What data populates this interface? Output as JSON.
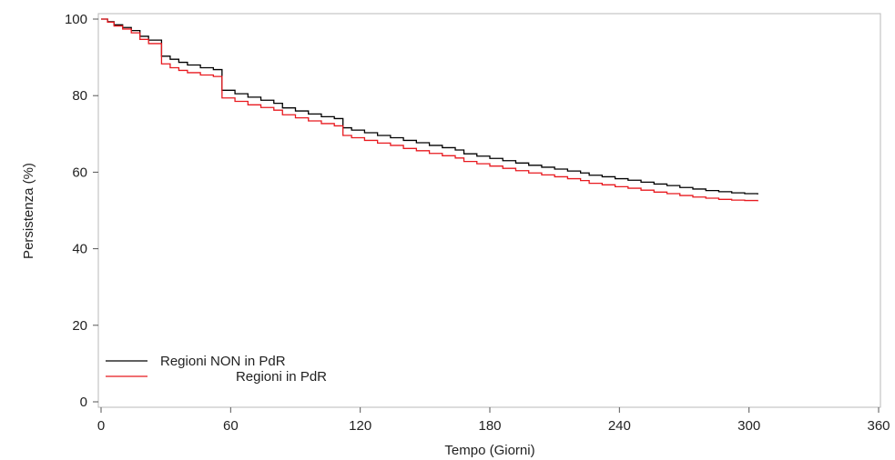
{
  "chart_data": {
    "type": "line",
    "title": "",
    "xlabel": "Tempo (Giorni)",
    "ylabel": "Persistenza (%)",
    "xlim": [
      0,
      360
    ],
    "ylim": [
      0,
      100
    ],
    "xticks": [
      0,
      60,
      120,
      180,
      240,
      300,
      360
    ],
    "yticks": [
      0,
      20,
      40,
      60,
      80,
      100
    ],
    "grid": false,
    "legend_position": "bottom-left",
    "step": true,
    "series": [
      {
        "name": "Regioni NON in PdR",
        "color": "#000000",
        "x": [
          0,
          3,
          6,
          10,
          14,
          18,
          22,
          28,
          32,
          36,
          40,
          46,
          52,
          56,
          62,
          68,
          74,
          80,
          84,
          90,
          96,
          102,
          108,
          112,
          116,
          122,
          128,
          134,
          140,
          146,
          152,
          158,
          164,
          168,
          174,
          180,
          186,
          192,
          198,
          204,
          210,
          216,
          222,
          226,
          232,
          238,
          244,
          250,
          256,
          262,
          268,
          274,
          280,
          286,
          292,
          298,
          304
        ],
        "y": [
          100,
          99.3,
          98.5,
          97.8,
          97,
          95.5,
          94.5,
          90.3,
          89.5,
          88.7,
          88,
          87.3,
          86.8,
          81.4,
          80.5,
          79.6,
          78.8,
          78,
          76.8,
          76,
          75.2,
          74.5,
          74,
          71.6,
          71,
          70.3,
          69.6,
          69,
          68.3,
          67.7,
          67,
          66.4,
          65.8,
          64.8,
          64.2,
          63.6,
          63,
          62.4,
          61.8,
          61.3,
          60.8,
          60.3,
          59.8,
          59.2,
          58.8,
          58.3,
          57.9,
          57.4,
          56.9,
          56.5,
          56,
          55.6,
          55.2,
          54.9,
          54.6,
          54.4,
          54.2
        ]
      },
      {
        "name": "Regioni in PdR",
        "color": "#e8191f",
        "x": [
          0,
          3,
          6,
          10,
          14,
          18,
          22,
          28,
          32,
          36,
          40,
          46,
          52,
          56,
          62,
          68,
          74,
          80,
          84,
          90,
          96,
          102,
          108,
          112,
          116,
          122,
          128,
          134,
          140,
          146,
          152,
          158,
          164,
          168,
          174,
          180,
          186,
          192,
          198,
          204,
          210,
          216,
          222,
          226,
          232,
          238,
          244,
          250,
          256,
          262,
          268,
          274,
          280,
          286,
          292,
          298,
          304
        ],
        "y": [
          100,
          99.2,
          98.2,
          97.4,
          96.4,
          94.7,
          93.6,
          88.3,
          87.3,
          86.6,
          86,
          85.4,
          85,
          79.4,
          78.5,
          77.6,
          76.9,
          76.2,
          75,
          74.2,
          73.4,
          72.7,
          72.1,
          69.6,
          69,
          68.3,
          67.6,
          67,
          66.2,
          65.6,
          64.9,
          64.3,
          63.7,
          62.8,
          62.2,
          61.6,
          61,
          60.4,
          59.8,
          59.3,
          58.8,
          58.3,
          57.8,
          57.1,
          56.7,
          56.2,
          55.8,
          55.3,
          54.8,
          54.4,
          53.9,
          53.5,
          53.2,
          52.9,
          52.7,
          52.6,
          52.4
        ]
      }
    ]
  }
}
